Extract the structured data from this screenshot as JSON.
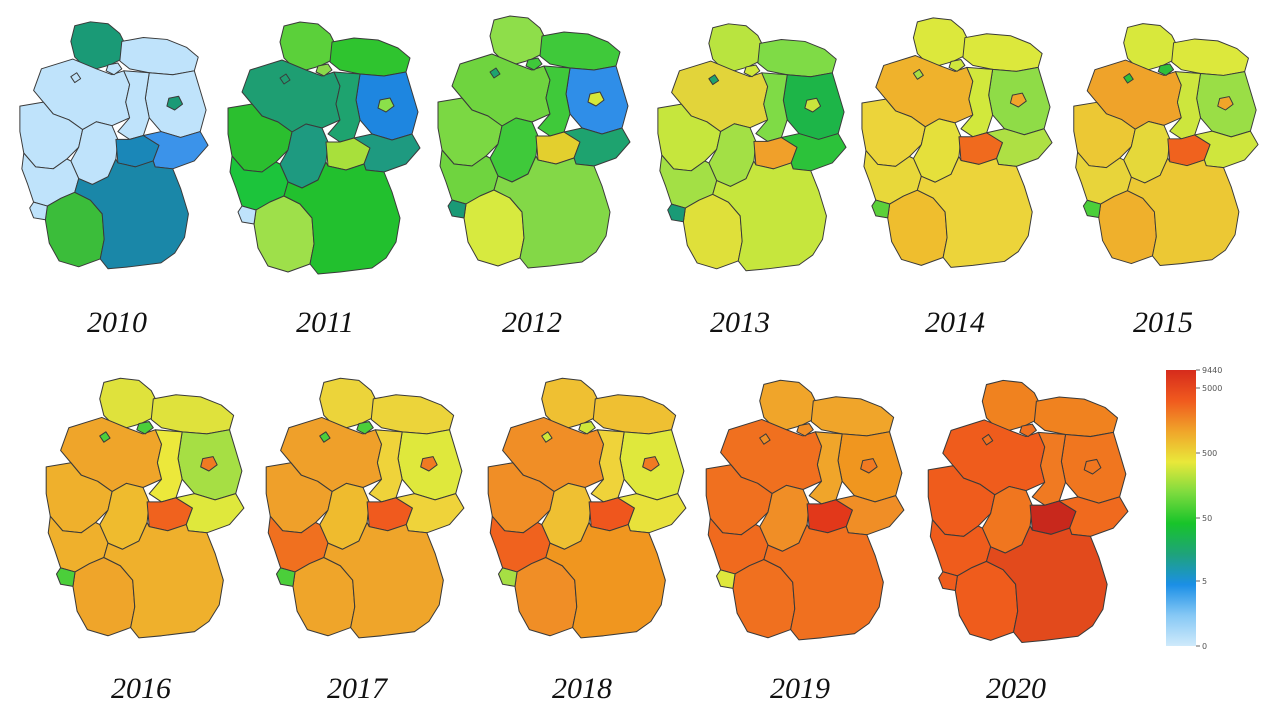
{
  "maps": [
    {
      "year": "2010",
      "colors": {
        "SH": "#1a9a76",
        "HH": "#bfe3fb",
        "MV": "#bfe3fb",
        "NI": "#bfe3fb",
        "HB": "#bfe3fb",
        "BB": "#bfe3fb",
        "BE": "#1a9a76",
        "ST": "#bfe3fb",
        "NW": "#bfe3fb",
        "HE": "#bfe3fb",
        "TH": "#1a87b8",
        "SN": "#3b93ea",
        "RP": "#bfe3fb",
        "SL": "#bfe3fb",
        "BW": "#3bbd3a",
        "BY": "#1a87a8"
      }
    },
    {
      "year": "2011",
      "colors": {
        "SH": "#5bd03a",
        "HH": "#8bd94a",
        "MV": "#2fc42f",
        "NI": "#1e9e72",
        "HB": "#1e9e72",
        "BB": "#1e86e0",
        "BE": "#8be04a",
        "ST": "#1ea36f",
        "NW": "#2bbf2f",
        "HE": "#1e9a80",
        "TH": "#a8e03b",
        "SN": "#1e9a80",
        "RP": "#1cc43b",
        "SL": "#bfe3fb",
        "BW": "#9ee04a",
        "BY": "#22c02e"
      }
    },
    {
      "year": "2012",
      "colors": {
        "SH": "#8ede4a",
        "HH": "#3fc93a",
        "MV": "#3fc93a",
        "NI": "#6fd43f",
        "HB": "#1ea36f",
        "BB": "#2f8ee8",
        "BE": "#d6e83a",
        "ST": "#3fc93a",
        "NW": "#7bd843",
        "HE": "#3fc93a",
        "TH": "#e3cf2e",
        "SN": "#1ea36f",
        "RP": "#6fd43f",
        "SL": "#1a9a76",
        "BW": "#d7ea3f",
        "BY": "#83d847"
      }
    },
    {
      "year": "2013",
      "colors": {
        "SH": "#b9e43f",
        "HH": "#cfe83a",
        "MV": "#7fdb46",
        "NI": "#e2d43a",
        "HB": "#1ea36f",
        "BB": "#1db548",
        "BE": "#c9e53c",
        "ST": "#7fdb46",
        "NW": "#c6e63d",
        "HE": "#a3e045",
        "TH": "#f0a02a",
        "SN": "#2cc23a",
        "RP": "#a3e045",
        "SL": "#1a9a76",
        "BW": "#dfe03a",
        "BY": "#c6e63d"
      }
    },
    {
      "year": "2014",
      "colors": {
        "SH": "#dce83c",
        "HH": "#cfe63d",
        "MV": "#dce83c",
        "NI": "#efb22c",
        "HB": "#a8df44",
        "BB": "#8fdc47",
        "BE": "#f0a52a",
        "ST": "#d2e83c",
        "NW": "#ecd43a",
        "HE": "#e5e03b",
        "TH": "#f06a1e",
        "SN": "#aee044",
        "RP": "#e8d83a",
        "SL": "#5bd03a",
        "BW": "#efbe2e",
        "BY": "#ecd43a"
      }
    },
    {
      "year": "2015",
      "colors": {
        "SH": "#d8e83c",
        "HH": "#2ebf3a",
        "MV": "#dce83c",
        "NI": "#efa32a",
        "HB": "#2ebf3a",
        "BB": "#9ade46",
        "BE": "#f0a52a",
        "ST": "#cde63d",
        "NW": "#ecc834",
        "HE": "#e5d83a",
        "TH": "#f0621e",
        "SN": "#cfe63d",
        "RP": "#e8d43a",
        "SL": "#4bcf3a",
        "BW": "#efb02c",
        "BY": "#ecc834"
      }
    },
    {
      "year": "2016",
      "colors": {
        "SH": "#dfe23c",
        "HH": "#4bcf3a",
        "MV": "#dfe23c",
        "NI": "#efa52a",
        "HB": "#4bcf3a",
        "BB": "#a6df44",
        "BE": "#f07a22",
        "ST": "#ece83b",
        "NW": "#efb02c",
        "HE": "#efbb2e",
        "TH": "#f0621e",
        "SN": "#dfe83c",
        "RP": "#efb02c",
        "SL": "#4bcf3a",
        "BW": "#efa52a",
        "BY": "#efb02c"
      }
    },
    {
      "year": "2017",
      "colors": {
        "SH": "#ecd43a",
        "HH": "#4bcf3a",
        "MV": "#ecd43a",
        "NI": "#efa02a",
        "HB": "#4bcf3a",
        "BB": "#dfe83c",
        "BE": "#f07a22",
        "ST": "#efd33a",
        "NW": "#efa02a",
        "HE": "#efbb2e",
        "TH": "#f05a1e",
        "SN": "#efd33a",
        "RP": "#f0701f",
        "SL": "#4bcf3a",
        "BW": "#efa52a",
        "BY": "#efa52a"
      }
    },
    {
      "year": "2018",
      "colors": {
        "SH": "#efc032",
        "HH": "#cfe83a",
        "MV": "#efc032",
        "NI": "#f08e26",
        "HB": "#cfe83a",
        "BB": "#dfe83c",
        "BE": "#f07a22",
        "ST": "#efd33a",
        "NW": "#f08e26",
        "HE": "#efc032",
        "TH": "#ef561d",
        "SN": "#e8e23b",
        "RP": "#f0621e",
        "SL": "#a6df44",
        "BW": "#f08e26",
        "BY": "#f0961f"
      }
    },
    {
      "year": "2019",
      "colors": {
        "SH": "#f0a52a",
        "HH": "#f08e26",
        "MV": "#f0a52a",
        "NI": "#f0701f",
        "HB": "#f08e26",
        "BB": "#f0961f",
        "BE": "#f07a22",
        "ST": "#f0a52a",
        "NW": "#f0701f",
        "HE": "#f08e26",
        "TH": "#e2381a",
        "SN": "#f08e26",
        "RP": "#f06a1e",
        "SL": "#dfe83c",
        "BW": "#f0701f",
        "BY": "#f0701f"
      }
    },
    {
      "year": "2020",
      "colors": {
        "SH": "#f0821f",
        "HH": "#f0701f",
        "MV": "#f0821f",
        "NI": "#ef5c1c",
        "HB": "#f0701f",
        "BB": "#f0761f",
        "BE": "#f0761f",
        "ST": "#f07a22",
        "NW": "#ef5c1c",
        "HE": "#f0761f",
        "TH": "#c8281c",
        "SN": "#f06a1e",
        "RP": "#ef5c1c",
        "SL": "#ef5c1c",
        "BW": "#ef5c1c",
        "BY": "#e24a1c"
      }
    }
  ],
  "colorbar": {
    "ticks": [
      "9440",
      "5000",
      "500",
      "50",
      "5",
      "0"
    ],
    "stops": [
      "#d62b1c",
      "#f05a1e",
      "#f0a52a",
      "#e9e83a",
      "#7ddb3e",
      "#18c42a",
      "#1ea37a",
      "#1b8fe6",
      "#86c8f5",
      "#cfeafb"
    ]
  }
}
